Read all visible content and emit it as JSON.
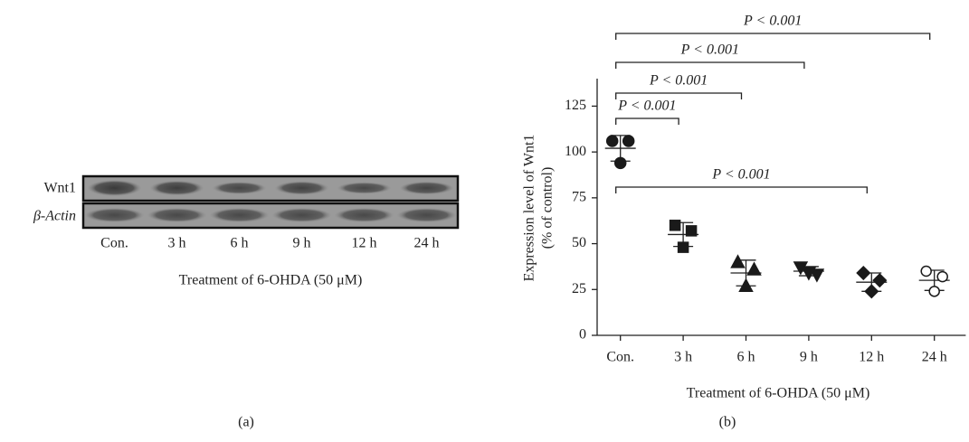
{
  "panel_a": {
    "row_labels": [
      "Wnt1",
      "β-Actin"
    ],
    "lanes": [
      "Con.",
      "3 h",
      "6 h",
      "9 h",
      "12 h",
      "24 h"
    ],
    "xlabel": "Treatment of 6-OHDA (50 μM)",
    "caption": "(a)"
  },
  "chart_data": {
    "type": "scatter",
    "categories": [
      "Con.",
      "3 h",
      "6 h",
      "9 h",
      "12 h",
      "24 h"
    ],
    "points": [
      [
        106,
        106,
        94
      ],
      [
        60,
        57,
        48
      ],
      [
        40,
        36,
        27
      ],
      [
        37,
        33,
        34
      ],
      [
        34,
        30,
        24
      ],
      [
        35,
        32,
        24
      ]
    ],
    "means": [
      102,
      55,
      34,
      35,
      29,
      30
    ],
    "errors": [
      7,
      6.5,
      7,
      2.5,
      5,
      5.5
    ],
    "markers": [
      "circle",
      "square",
      "triangle-up",
      "triangle-down",
      "diamond",
      "open-circle"
    ],
    "color": "#1a1a1a",
    "ylim": [
      0,
      140
    ],
    "yticks": [
      0,
      25,
      50,
      75,
      100,
      125
    ],
    "ylabel": [
      "Expression level of Wnt1",
      "(% of control)"
    ],
    "xlabel": "Treatment of 6-OHDA (50 μM)",
    "comparisons": [
      {
        "groups": [
          "Con.",
          "3 h"
        ],
        "label": "P < 0.001"
      },
      {
        "groups": [
          "Con.",
          "6 h"
        ],
        "label": "P < 0.001"
      },
      {
        "groups": [
          "Con.",
          "9 h"
        ],
        "label": "P < 0.001"
      },
      {
        "groups": [
          "Con.",
          "24 h"
        ],
        "label": "P < 0.001"
      },
      {
        "groups": [
          "Con.",
          "12 h"
        ],
        "label": "P < 0.001"
      }
    ],
    "caption": "(b)"
  }
}
